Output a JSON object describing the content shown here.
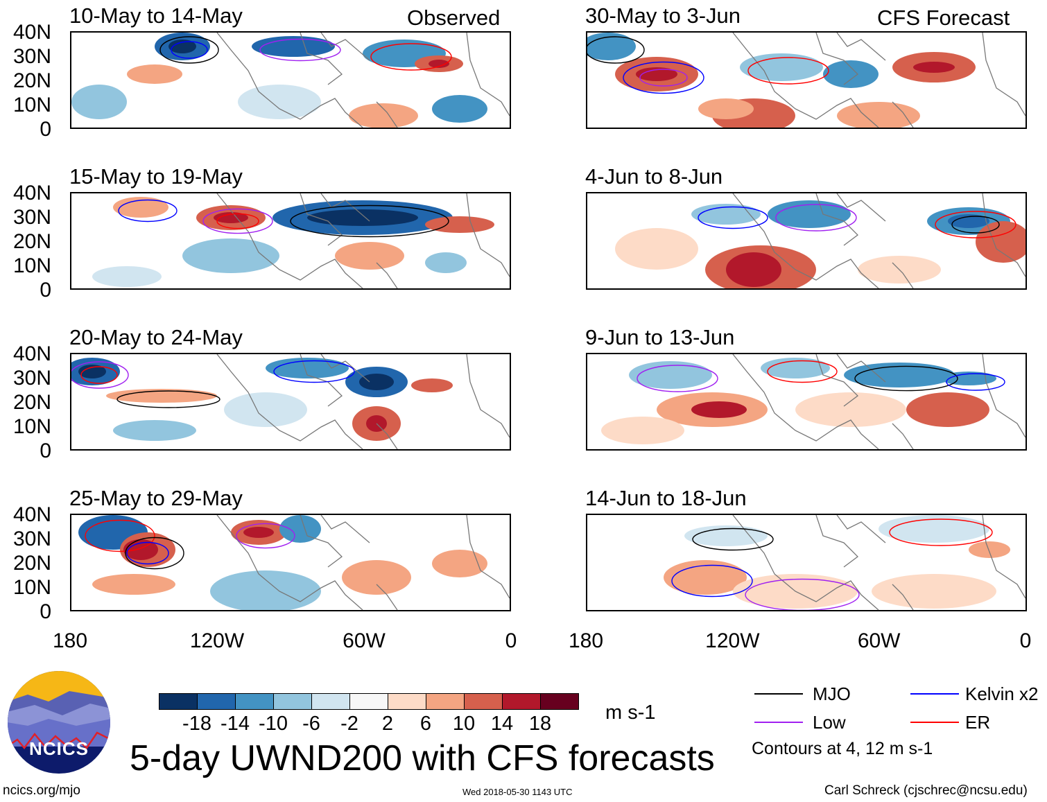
{
  "headers": {
    "left": "Observed",
    "right": "CFS Forecast"
  },
  "panels_left": [
    {
      "title": "10-May to 14-May"
    },
    {
      "title": "15-May to 19-May"
    },
    {
      "title": "20-May to 24-May"
    },
    {
      "title": "25-May to 29-May"
    }
  ],
  "panels_right": [
    {
      "title": "30-May to 3-Jun"
    },
    {
      "title": "4-Jun to 8-Jun"
    },
    {
      "title": "9-Jun to 13-Jun"
    },
    {
      "title": "14-Jun to 18-Jun"
    }
  ],
  "lat_labels": [
    "40N",
    "30N",
    "20N",
    "10N",
    "0"
  ],
  "lon_labels": [
    "180",
    "120W",
    "60W",
    "0"
  ],
  "colorbar": {
    "colors": [
      "#0a3163",
      "#2166ac",
      "#4393c3",
      "#92c5de",
      "#d1e5f0",
      "#f7f7f7",
      "#fddbc7",
      "#f4a582",
      "#d6604d",
      "#b2182b",
      "#67001f"
    ],
    "labels": [
      "-18",
      "-14",
      "-10",
      "-6",
      "-2",
      "2",
      "6",
      "10",
      "14",
      "18"
    ],
    "units": "m s-1"
  },
  "title": "5-day UWND200 with CFS forecasts",
  "legend": {
    "items": [
      {
        "label": "MJO",
        "color": "#000000"
      },
      {
        "label": "Kelvin x2",
        "color": "#0000ff"
      },
      {
        "label": "Low",
        "color": "#a020f0"
      },
      {
        "label": "ER",
        "color": "#ff0000"
      }
    ],
    "note": "Contours at 4, 12 m s-1"
  },
  "logo": {
    "text": "NCICS"
  },
  "footer": {
    "url": "ncics.org/mjo",
    "timestamp": "Wed 2018-05-30 1143 UTC",
    "credit": "Carl Schreck (cjschrec@ncsu.edu)"
  }
}
